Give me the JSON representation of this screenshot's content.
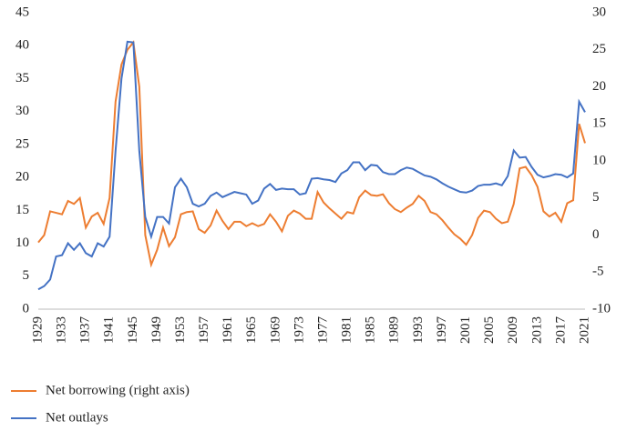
{
  "chart_data": {
    "type": "line",
    "x": [
      1929,
      1930,
      1931,
      1932,
      1933,
      1934,
      1935,
      1936,
      1937,
      1938,
      1939,
      1940,
      1941,
      1942,
      1943,
      1944,
      1945,
      1946,
      1947,
      1948,
      1949,
      1950,
      1951,
      1952,
      1953,
      1954,
      1955,
      1956,
      1957,
      1958,
      1959,
      1960,
      1961,
      1962,
      1963,
      1964,
      1965,
      1966,
      1967,
      1968,
      1969,
      1970,
      1971,
      1972,
      1973,
      1974,
      1975,
      1976,
      1977,
      1978,
      1979,
      1980,
      1981,
      1982,
      1983,
      1984,
      1985,
      1986,
      1987,
      1988,
      1989,
      1990,
      1991,
      1992,
      1993,
      1994,
      1995,
      1996,
      1997,
      1998,
      1999,
      2000,
      2001,
      2002,
      2003,
      2004,
      2005,
      2006,
      2007,
      2008,
      2009,
      2010,
      2011,
      2012,
      2013,
      2014,
      2015,
      2016,
      2017,
      2018,
      2019,
      2020,
      2021
    ],
    "series": [
      {
        "name": "Net borrowing (right axis)",
        "color": "#ed7d31",
        "axis": "y2",
        "values": [
          -1,
          0,
          3.2,
          3,
          2.8,
          4.6,
          4.2,
          5,
          1,
          2.5,
          3,
          1.5,
          5,
          18,
          23,
          25,
          26,
          20,
          0,
          -4,
          -2,
          1,
          -1.5,
          -0.3,
          2.8,
          3.1,
          3.2,
          0.8,
          0.3,
          1.3,
          3.3,
          1.9,
          0.8,
          1.8,
          1.8,
          1.2,
          1.6,
          1.2,
          1.5,
          2.8,
          1.8,
          0.5,
          2.6,
          3.3,
          2.9,
          2.2,
          2.2,
          5.8,
          4.4,
          3.6,
          2.9,
          2.2,
          3.1,
          2.9,
          5.1,
          6,
          5.4,
          5.3,
          5.5,
          4.3,
          3.5,
          3.1,
          3.7,
          4.2,
          5.3,
          4.6,
          3.1,
          2.8,
          2,
          1,
          0.1,
          -0.5,
          -1.3,
          0,
          2.3,
          3.3,
          3.1,
          2.2,
          1.6,
          1.8,
          4.2,
          9,
          9.2,
          8.1,
          6.5,
          3.2,
          2.5,
          3,
          1.8,
          4.3,
          4.7,
          15,
          12.4
        ]
      },
      {
        "name": "Net outlays",
        "color": "#4472c4",
        "values": [
          3,
          3.5,
          4.5,
          8,
          8.2,
          10,
          9,
          10,
          8.5,
          8,
          10,
          9.5,
          11,
          24,
          35,
          40.6,
          40.5,
          24,
          14,
          11,
          14,
          14,
          13,
          18.5,
          19.8,
          18.5,
          16,
          15.6,
          16,
          17.2,
          17.7,
          17,
          17.4,
          17.8,
          17.6,
          17.4,
          16,
          16.5,
          18.3,
          19,
          18.1,
          18.3,
          18.2,
          18.2,
          17.4,
          17.6,
          19.8,
          19.9,
          19.7,
          19.6,
          19.3,
          20.6,
          21.1,
          22.3,
          22.3,
          21.1,
          21.9,
          21.8,
          20.8,
          20.5,
          20.5,
          21.1,
          21.5,
          21.3,
          20.8,
          20.3,
          20.1,
          19.7,
          19.1,
          18.6,
          18.2,
          17.8,
          17.7,
          18,
          18.7,
          18.9,
          18.9,
          19.1,
          18.8,
          20.2,
          24.1,
          23,
          23.1,
          21.6,
          20.4,
          20,
          20.2,
          20.5,
          20.4,
          20,
          20.6,
          31.5,
          29.9
        ]
      }
    ],
    "xlim": [
      1929,
      2021
    ],
    "xticks": [
      1929,
      1933,
      1937,
      1941,
      1945,
      1949,
      1953,
      1957,
      1961,
      1965,
      1969,
      1973,
      1977,
      1981,
      1985,
      1989,
      1993,
      1997,
      2001,
      2005,
      2009,
      2013,
      2017,
      2021
    ],
    "ylim": [
      0,
      45
    ],
    "yticks": [
      0,
      5,
      10,
      15,
      20,
      25,
      30,
      35,
      40,
      45
    ],
    "y2lim": [
      -10,
      30
    ],
    "y2ticks": [
      -10,
      -5,
      0,
      5,
      10,
      15,
      20,
      25,
      30
    ],
    "legend": "bottom"
  }
}
